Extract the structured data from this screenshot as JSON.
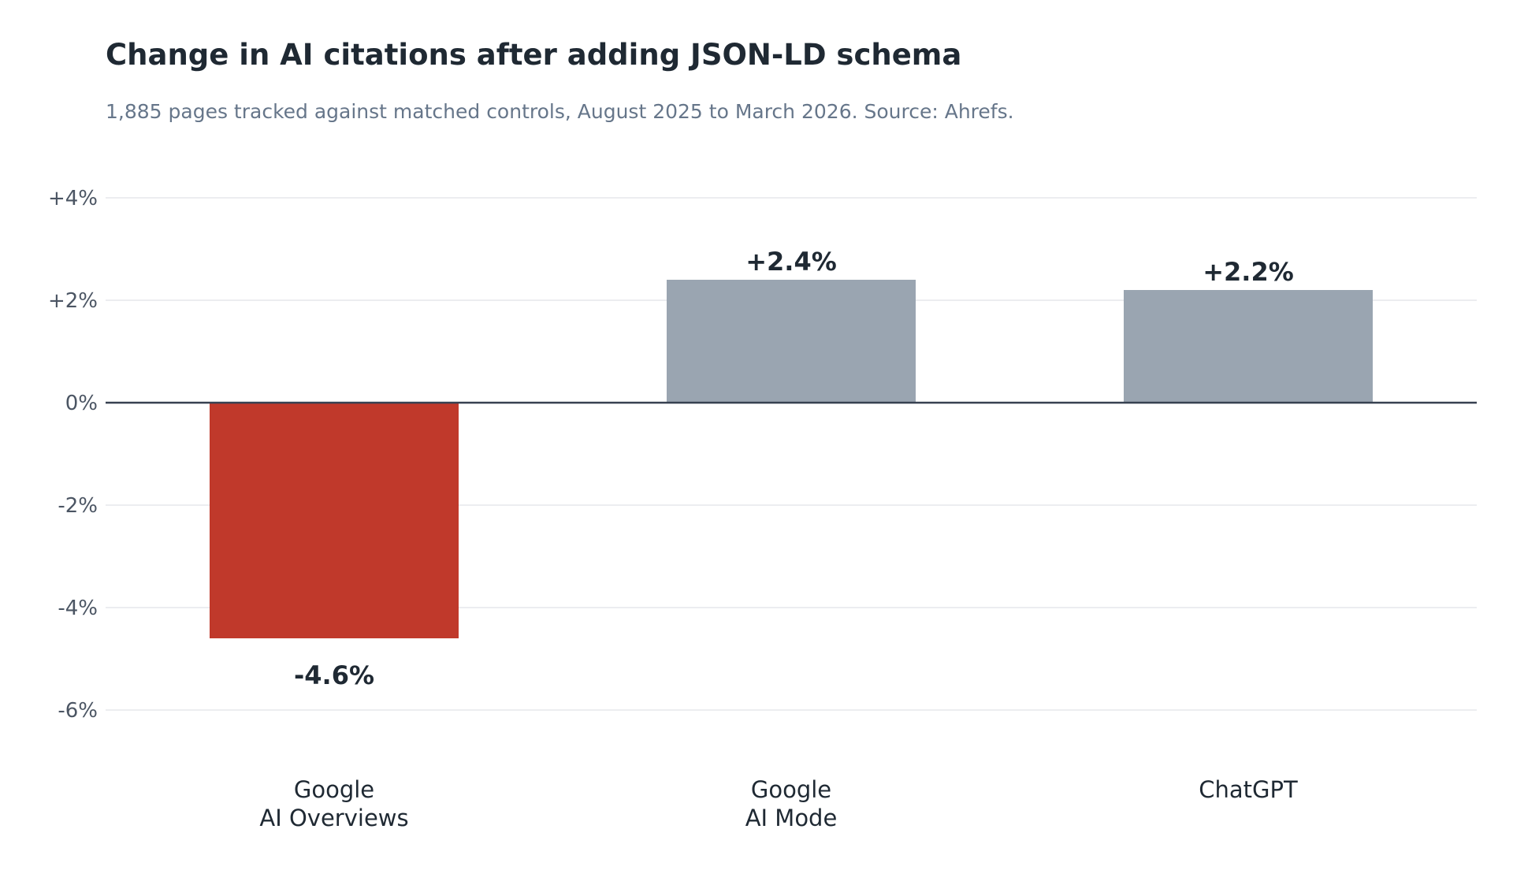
{
  "chart_data": {
    "type": "bar",
    "title": "Change in AI citations after adding JSON-LD schema",
    "subtitle": "1,885 pages tracked against matched controls, August 2025 to March 2026. Source: Ahrefs.",
    "categories": [
      [
        "Google",
        "AI Overviews"
      ],
      [
        "Google",
        "AI Mode"
      ],
      [
        "ChatGPT"
      ]
    ],
    "values": [
      -4.6,
      2.4,
      2.2
    ],
    "data_labels": [
      "-4.6%",
      "+2.4%",
      "+2.2%"
    ],
    "bar_colors": [
      "#c0392b",
      "#9aa5b1",
      "#9aa5b1"
    ],
    "ylim": [
      -7,
      4.4
    ],
    "yticks": [
      4,
      2,
      0,
      -2,
      -4,
      -6
    ],
    "ytick_labels": [
      "+4%",
      "+2%",
      "0%",
      "-2%",
      "-4%",
      "-6%"
    ],
    "grid": true,
    "xlabel": "",
    "ylabel": ""
  },
  "colors": {
    "grid": "#e5e7eb",
    "zero_line": "#374151",
    "text": "#1f2933",
    "subtitle": "#66768a",
    "tick": "#4b5563"
  }
}
